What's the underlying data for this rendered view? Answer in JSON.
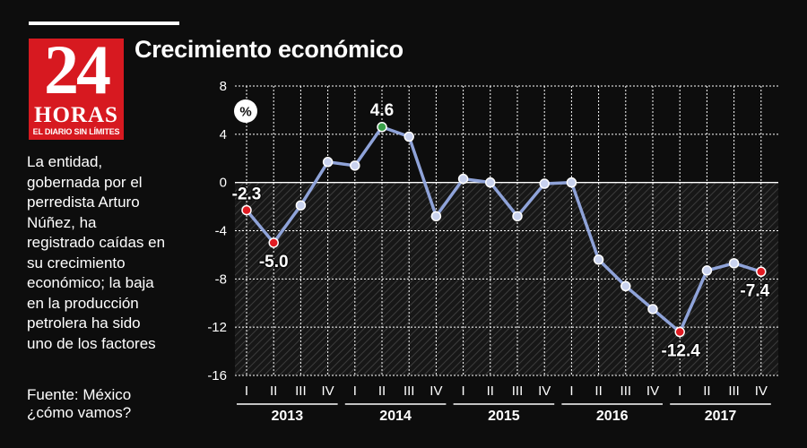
{
  "header": {
    "title": "Crecimiento económico"
  },
  "logo": {
    "number": "24",
    "word": "HORAS",
    "tagline": "EL DIARIO SIN LÍMITES",
    "color": "#d71920"
  },
  "sidebar": {
    "description": "La entidad,\ngobernada por el\nperredista Arturo\nNúñez, ha\nregistrado caídas en\nsu crecimiento\neconómico; la baja\nen la producción\npetrolera ha sido\nuno de los factores",
    "source": "Fuente: México\n¿cómo vamos?"
  },
  "chart_data": {
    "type": "line",
    "unit_label": "%",
    "ylim": [
      -16,
      8
    ],
    "yticks": [
      8,
      4,
      0,
      -4,
      -8,
      -12,
      -16
    ],
    "ytick_labels": [
      "8",
      "4",
      "0",
      "-4",
      "-8",
      "-12",
      "-16"
    ],
    "grid": true,
    "negative_area_hatched": true,
    "years": [
      "2013",
      "2014",
      "2015",
      "2016",
      "2017"
    ],
    "quarters": [
      "I",
      "II",
      "III",
      "IV"
    ],
    "series": [
      {
        "color": "#8fa3d9",
        "values": [
          -2.3,
          -5.0,
          -1.9,
          1.7,
          1.4,
          4.6,
          3.8,
          -2.8,
          0.3,
          0.0,
          -2.8,
          -0.1,
          0.0,
          -6.4,
          -8.6,
          -10.5,
          -12.4,
          -7.3,
          -6.7,
          -7.4
        ]
      }
    ],
    "highlights": [
      {
        "index": 0,
        "label": "-2.3",
        "color": "#e01b22"
      },
      {
        "index": 1,
        "label": "-5.0",
        "color": "#e01b22"
      },
      {
        "index": 5,
        "label": "4.6",
        "color": "#3aa04a"
      },
      {
        "index": 16,
        "label": "-12.4",
        "color": "#e01b22"
      },
      {
        "index": 19,
        "label": "-7.4",
        "color": "#e01b22"
      }
    ]
  }
}
